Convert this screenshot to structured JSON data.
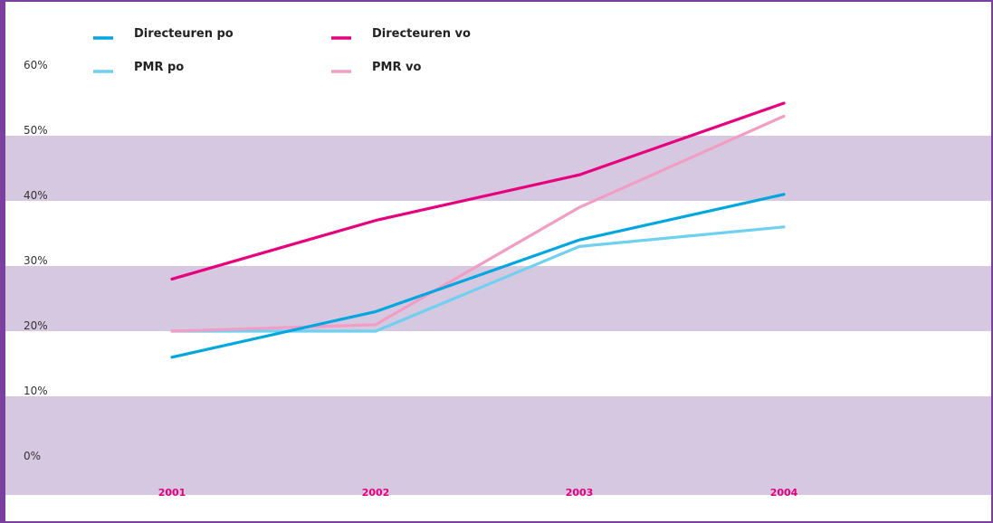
{
  "chart_data": {
    "type": "line",
    "title": "",
    "xlabel": "",
    "ylabel": "",
    "categories": [
      "2001",
      "2002",
      "2003",
      "2004"
    ],
    "y_ticks": [
      "0%",
      "10%",
      "20%",
      "30%",
      "40%",
      "50%",
      "60%"
    ],
    "ylim": [
      0,
      60
    ],
    "grid": "alternating horizontal bands",
    "legend_position": "top-left",
    "series": [
      {
        "name": "Directeuren po",
        "color": "#00a6df",
        "values": [
          16,
          23,
          34,
          41
        ]
      },
      {
        "name": "Directeuren vo",
        "color": "#e6007e",
        "values": [
          28,
          37,
          44,
          55
        ]
      },
      {
        "name": "PMR po",
        "color": "#6fd0ef",
        "values": [
          20,
          20,
          33,
          36
        ]
      },
      {
        "name": "PMR vo",
        "color": "#f29ec4",
        "values": [
          20,
          21,
          39,
          53
        ]
      }
    ],
    "colors": {
      "band": "#d6c8e1",
      "frame": "#7b3fa0",
      "category_label": "#e6007e"
    }
  }
}
